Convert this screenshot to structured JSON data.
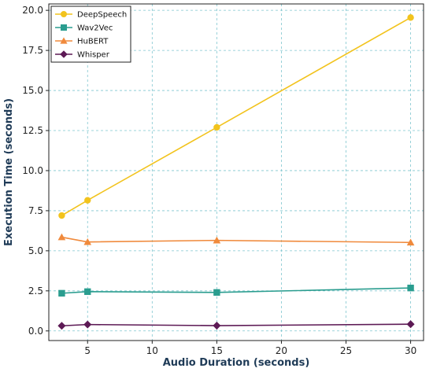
{
  "chart_data": {
    "type": "line",
    "xlabel": "Audio Duration (seconds)",
    "ylabel": "Execution Time (seconds)",
    "x": [
      3,
      5,
      15,
      30
    ],
    "xlim": [
      2,
      31
    ],
    "ylim": [
      -0.6,
      20.4
    ],
    "xticks": [
      5,
      10,
      15,
      20,
      25,
      30
    ],
    "yticks": [
      0.0,
      2.5,
      5.0,
      7.5,
      10.0,
      12.5,
      15.0,
      17.5,
      20.0
    ],
    "grid": true,
    "legend_position": "top-left",
    "series": [
      {
        "name": "DeepSpeech",
        "values": [
          7.2,
          8.15,
          12.7,
          19.55
        ],
        "color": "#f2c31d",
        "marker": "circle"
      },
      {
        "name": "Wav2Vec",
        "values": [
          2.35,
          2.45,
          2.4,
          2.68
        ],
        "color": "#2a9d8f",
        "marker": "square"
      },
      {
        "name": "HuBERT",
        "values": [
          5.85,
          5.55,
          5.65,
          5.52
        ],
        "color": "#f08a3c",
        "marker": "triangle"
      },
      {
        "name": "Whisper",
        "values": [
          0.32,
          0.4,
          0.33,
          0.42
        ],
        "color": "#5d1a55",
        "marker": "diamond"
      }
    ]
  }
}
